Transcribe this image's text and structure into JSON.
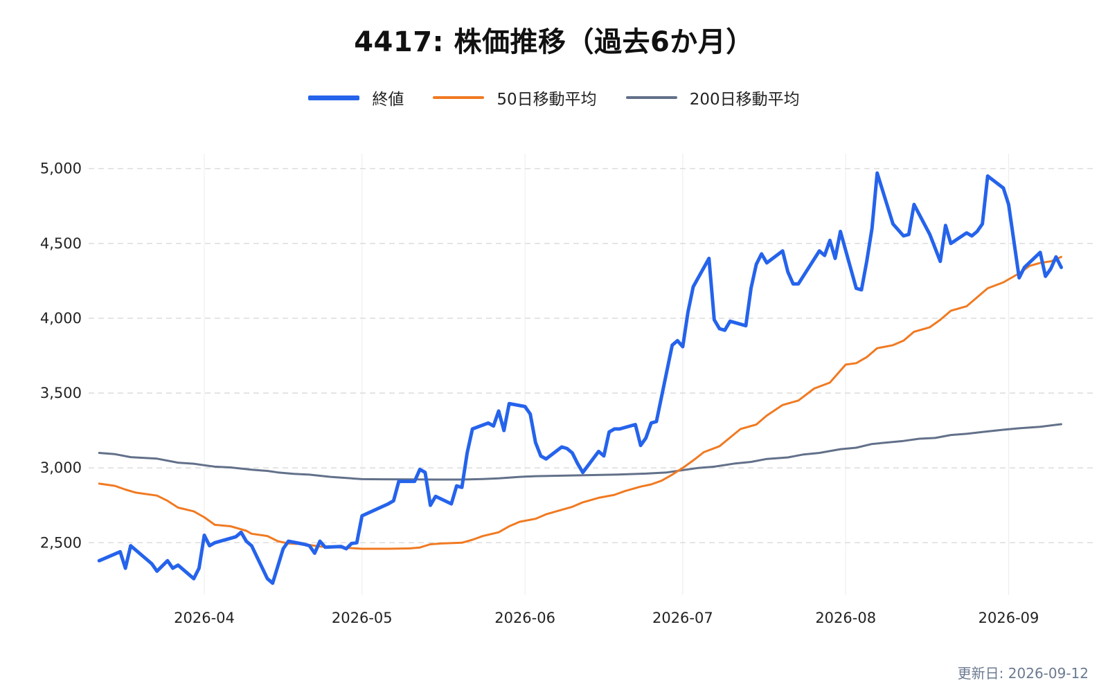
{
  "footer": {
    "updated_label": "更新日: 2026-09-12"
  },
  "chart_data": {
    "type": "line",
    "title": "4417: 株価推移（過去6か月）",
    "xlabel": "",
    "ylabel": "",
    "ylim": [
      2150,
      5100
    ],
    "yticks": [
      2500,
      3000,
      3500,
      4000,
      4500,
      5000
    ],
    "ytick_labels": [
      "2,500",
      "3,000",
      "3,500",
      "4,000",
      "4,500",
      "5,000"
    ],
    "xlim": [
      "2026-03-10",
      "2026-09-17"
    ],
    "xticks": [
      "2026-04-01",
      "2026-05-01",
      "2026-06-01",
      "2026-07-01",
      "2026-08-01",
      "2026-09-01"
    ],
    "xtick_labels": [
      "2026-04",
      "2026-05",
      "2026-06",
      "2026-07",
      "2026-08",
      "2026-09"
    ],
    "grid": {
      "y": true,
      "x": true
    },
    "legend_position": "top-center",
    "series": [
      {
        "name": "終値",
        "color": "#2563eb",
        "points": [
          [
            "2026-03-12",
            2380
          ],
          [
            "2026-03-16",
            2440
          ],
          [
            "2026-03-17",
            2330
          ],
          [
            "2026-03-18",
            2480
          ],
          [
            "2026-03-19",
            2450
          ],
          [
            "2026-03-22",
            2360
          ],
          [
            "2026-03-23",
            2310
          ],
          [
            "2026-03-25",
            2380
          ],
          [
            "2026-03-26",
            2330
          ],
          [
            "2026-03-27",
            2350
          ],
          [
            "2026-03-30",
            2260
          ],
          [
            "2026-03-31",
            2330
          ],
          [
            "2026-04-01",
            2550
          ],
          [
            "2026-04-02",
            2480
          ],
          [
            "2026-04-03",
            2500
          ],
          [
            "2026-04-07",
            2540
          ],
          [
            "2026-04-08",
            2570
          ],
          [
            "2026-04-09",
            2510
          ],
          [
            "2026-04-10",
            2480
          ],
          [
            "2026-04-13",
            2260
          ],
          [
            "2026-04-14",
            2230
          ],
          [
            "2026-04-16",
            2460
          ],
          [
            "2026-04-17",
            2510
          ],
          [
            "2026-04-20",
            2490
          ],
          [
            "2026-04-21",
            2480
          ],
          [
            "2026-04-22",
            2430
          ],
          [
            "2026-04-23",
            2510
          ],
          [
            "2026-04-24",
            2470
          ],
          [
            "2026-04-27",
            2475
          ],
          [
            "2026-04-28",
            2460
          ],
          [
            "2026-04-29",
            2495
          ],
          [
            "2026-04-30",
            2500
          ],
          [
            "2026-05-01",
            2680
          ],
          [
            "2026-05-06",
            2760
          ],
          [
            "2026-05-07",
            2780
          ],
          [
            "2026-05-08",
            2910
          ],
          [
            "2026-05-11",
            2910
          ],
          [
            "2026-05-12",
            2990
          ],
          [
            "2026-05-13",
            2970
          ],
          [
            "2026-05-14",
            2750
          ],
          [
            "2026-05-15",
            2810
          ],
          [
            "2026-05-18",
            2760
          ],
          [
            "2026-05-19",
            2880
          ],
          [
            "2026-05-20",
            2870
          ],
          [
            "2026-05-21",
            3100
          ],
          [
            "2026-05-22",
            3260
          ],
          [
            "2026-05-25",
            3300
          ],
          [
            "2026-05-26",
            3280
          ],
          [
            "2026-05-27",
            3380
          ],
          [
            "2026-05-28",
            3250
          ],
          [
            "2026-05-29",
            3430
          ],
          [
            "2026-06-01",
            3410
          ],
          [
            "2026-06-02",
            3360
          ],
          [
            "2026-06-03",
            3170
          ],
          [
            "2026-06-04",
            3080
          ],
          [
            "2026-06-05",
            3060
          ],
          [
            "2026-06-08",
            3140
          ],
          [
            "2026-06-09",
            3130
          ],
          [
            "2026-06-10",
            3100
          ],
          [
            "2026-06-11",
            3030
          ],
          [
            "2026-06-12",
            2970
          ],
          [
            "2026-06-15",
            3110
          ],
          [
            "2026-06-16",
            3080
          ],
          [
            "2026-06-17",
            3240
          ],
          [
            "2026-06-18",
            3260
          ],
          [
            "2026-06-19",
            3260
          ],
          [
            "2026-06-22",
            3290
          ],
          [
            "2026-06-23",
            3150
          ],
          [
            "2026-06-24",
            3200
          ],
          [
            "2026-06-25",
            3300
          ],
          [
            "2026-06-26",
            3310
          ],
          [
            "2026-06-29",
            3820
          ],
          [
            "2026-06-30",
            3850
          ],
          [
            "2026-07-01",
            3810
          ],
          [
            "2026-07-02",
            4040
          ],
          [
            "2026-07-03",
            4210
          ],
          [
            "2026-07-06",
            4400
          ],
          [
            "2026-07-07",
            3990
          ],
          [
            "2026-07-08",
            3930
          ],
          [
            "2026-07-09",
            3920
          ],
          [
            "2026-07-10",
            3980
          ],
          [
            "2026-07-13",
            3950
          ],
          [
            "2026-07-14",
            4200
          ],
          [
            "2026-07-15",
            4360
          ],
          [
            "2026-07-16",
            4430
          ],
          [
            "2026-07-17",
            4370
          ],
          [
            "2026-07-20",
            4450
          ],
          [
            "2026-07-21",
            4310
          ],
          [
            "2026-07-22",
            4230
          ],
          [
            "2026-07-23",
            4230
          ],
          [
            "2026-07-27",
            4450
          ],
          [
            "2026-07-28",
            4420
          ],
          [
            "2026-07-29",
            4520
          ],
          [
            "2026-07-30",
            4400
          ],
          [
            "2026-07-31",
            4580
          ],
          [
            "2026-08-03",
            4200
          ],
          [
            "2026-08-04",
            4190
          ],
          [
            "2026-08-05",
            4380
          ],
          [
            "2026-08-06",
            4600
          ],
          [
            "2026-08-07",
            4970
          ],
          [
            "2026-08-10",
            4630
          ],
          [
            "2026-08-12",
            4550
          ],
          [
            "2026-08-13",
            4560
          ],
          [
            "2026-08-14",
            4760
          ],
          [
            "2026-08-17",
            4560
          ],
          [
            "2026-08-19",
            4380
          ],
          [
            "2026-08-20",
            4620
          ],
          [
            "2026-08-21",
            4500
          ],
          [
            "2026-08-24",
            4570
          ],
          [
            "2026-08-25",
            4550
          ],
          [
            "2026-08-26",
            4580
          ],
          [
            "2026-08-27",
            4630
          ],
          [
            "2026-08-28",
            4950
          ],
          [
            "2026-08-31",
            4870
          ],
          [
            "2026-09-01",
            4760
          ],
          [
            "2026-09-03",
            4270
          ],
          [
            "2026-09-04",
            4340
          ],
          [
            "2026-09-07",
            4440
          ],
          [
            "2026-09-08",
            4280
          ],
          [
            "2026-09-09",
            4330
          ],
          [
            "2026-09-10",
            4410
          ],
          [
            "2026-09-11",
            4340
          ]
        ]
      },
      {
        "name": "50日移動平均",
        "color": "#f07a22",
        "points": [
          [
            "2026-03-12",
            2895
          ],
          [
            "2026-03-15",
            2880
          ],
          [
            "2026-03-17",
            2855
          ],
          [
            "2026-03-19",
            2835
          ],
          [
            "2026-03-23",
            2815
          ],
          [
            "2026-03-25",
            2780
          ],
          [
            "2026-03-27",
            2735
          ],
          [
            "2026-03-30",
            2710
          ],
          [
            "2026-04-01",
            2670
          ],
          [
            "2026-04-03",
            2620
          ],
          [
            "2026-04-06",
            2610
          ],
          [
            "2026-04-09",
            2580
          ],
          [
            "2026-04-10",
            2560
          ],
          [
            "2026-04-13",
            2545
          ],
          [
            "2026-04-15",
            2510
          ],
          [
            "2026-04-17",
            2495
          ],
          [
            "2026-04-20",
            2490
          ],
          [
            "2026-04-23",
            2475
          ],
          [
            "2026-04-27",
            2468
          ],
          [
            "2026-05-01",
            2460
          ],
          [
            "2026-05-06",
            2460
          ],
          [
            "2026-05-10",
            2462
          ],
          [
            "2026-05-12",
            2468
          ],
          [
            "2026-05-14",
            2490
          ],
          [
            "2026-05-16",
            2495
          ],
          [
            "2026-05-20",
            2500
          ],
          [
            "2026-05-22",
            2520
          ],
          [
            "2026-05-24",
            2545
          ],
          [
            "2026-05-27",
            2570
          ],
          [
            "2026-05-29",
            2610
          ],
          [
            "2026-05-31",
            2640
          ],
          [
            "2026-06-03",
            2660
          ],
          [
            "2026-06-05",
            2690
          ],
          [
            "2026-06-08",
            2720
          ],
          [
            "2026-06-10",
            2740
          ],
          [
            "2026-06-12",
            2770
          ],
          [
            "2026-06-15",
            2800
          ],
          [
            "2026-06-18",
            2820
          ],
          [
            "2026-06-20",
            2845
          ],
          [
            "2026-06-23",
            2875
          ],
          [
            "2026-06-25",
            2890
          ],
          [
            "2026-06-27",
            2915
          ],
          [
            "2026-06-29",
            2955
          ],
          [
            "2026-07-01",
            3000
          ],
          [
            "2026-07-03",
            3050
          ],
          [
            "2026-07-05",
            3105
          ],
          [
            "2026-07-08",
            3145
          ],
          [
            "2026-07-12",
            3260
          ],
          [
            "2026-07-15",
            3290
          ],
          [
            "2026-07-17",
            3350
          ],
          [
            "2026-07-20",
            3420
          ],
          [
            "2026-07-23",
            3450
          ],
          [
            "2026-07-26",
            3530
          ],
          [
            "2026-07-29",
            3570
          ],
          [
            "2026-08-01",
            3690
          ],
          [
            "2026-08-03",
            3700
          ],
          [
            "2026-08-05",
            3740
          ],
          [
            "2026-08-07",
            3800
          ],
          [
            "2026-08-10",
            3820
          ],
          [
            "2026-08-12",
            3850
          ],
          [
            "2026-08-14",
            3910
          ],
          [
            "2026-08-17",
            3940
          ],
          [
            "2026-08-19",
            3990
          ],
          [
            "2026-08-21",
            4050
          ],
          [
            "2026-08-24",
            4080
          ],
          [
            "2026-08-26",
            4140
          ],
          [
            "2026-08-28",
            4200
          ],
          [
            "2026-08-31",
            4240
          ],
          [
            "2026-09-03",
            4300
          ],
          [
            "2026-09-05",
            4350
          ],
          [
            "2026-09-07",
            4370
          ],
          [
            "2026-09-09",
            4380
          ],
          [
            "2026-09-11",
            4410
          ]
        ]
      },
      {
        "name": "200日移動平均",
        "color": "#627089",
        "points": [
          [
            "2026-03-12",
            3100
          ],
          [
            "2026-03-15",
            3092
          ],
          [
            "2026-03-18",
            3072
          ],
          [
            "2026-03-23",
            3062
          ],
          [
            "2026-03-27",
            3035
          ],
          [
            "2026-03-30",
            3028
          ],
          [
            "2026-04-01",
            3018
          ],
          [
            "2026-04-03",
            3008
          ],
          [
            "2026-04-06",
            3003
          ],
          [
            "2026-04-10",
            2988
          ],
          [
            "2026-04-13",
            2980
          ],
          [
            "2026-04-15",
            2970
          ],
          [
            "2026-04-18",
            2960
          ],
          [
            "2026-04-21",
            2955
          ],
          [
            "2026-04-25",
            2940
          ],
          [
            "2026-04-29",
            2930
          ],
          [
            "2026-05-01",
            2925
          ],
          [
            "2026-05-05",
            2924
          ],
          [
            "2026-05-10",
            2923
          ],
          [
            "2026-05-15",
            2922
          ],
          [
            "2026-05-20",
            2922
          ],
          [
            "2026-05-24",
            2926
          ],
          [
            "2026-05-27",
            2930
          ],
          [
            "2026-05-31",
            2940
          ],
          [
            "2026-06-03",
            2945
          ],
          [
            "2026-06-08",
            2948
          ],
          [
            "2026-06-13",
            2952
          ],
          [
            "2026-06-18",
            2955
          ],
          [
            "2026-06-24",
            2962
          ],
          [
            "2026-06-28",
            2970
          ],
          [
            "2026-07-01",
            2985
          ],
          [
            "2026-07-04",
            3000
          ],
          [
            "2026-07-07",
            3008
          ],
          [
            "2026-07-11",
            3030
          ],
          [
            "2026-07-14",
            3040
          ],
          [
            "2026-07-17",
            3060
          ],
          [
            "2026-07-21",
            3070
          ],
          [
            "2026-07-24",
            3090
          ],
          [
            "2026-07-27",
            3100
          ],
          [
            "2026-07-31",
            3125
          ],
          [
            "2026-08-03",
            3135
          ],
          [
            "2026-08-06",
            3160
          ],
          [
            "2026-08-09",
            3170
          ],
          [
            "2026-08-12",
            3180
          ],
          [
            "2026-08-15",
            3195
          ],
          [
            "2026-08-18",
            3200
          ],
          [
            "2026-08-21",
            3220
          ],
          [
            "2026-08-24",
            3228
          ],
          [
            "2026-08-27",
            3240
          ],
          [
            "2026-08-31",
            3255
          ],
          [
            "2026-09-03",
            3265
          ],
          [
            "2026-09-07",
            3275
          ],
          [
            "2026-09-11",
            3292
          ]
        ]
      }
    ]
  }
}
